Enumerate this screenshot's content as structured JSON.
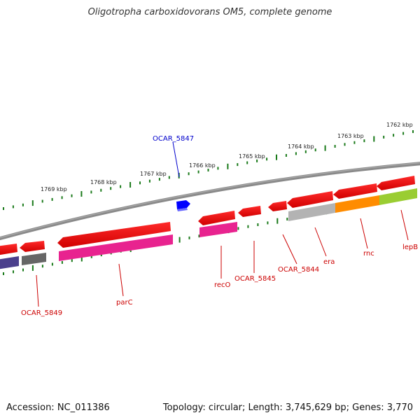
{
  "title": "Oligotropha carboxidovorans OM5, complete genome",
  "footer": {
    "accession": "Accession: NC_011386",
    "summary": "Topology: circular; Length: 3,745,629 bp; Genes: 3,770"
  },
  "kbp_ticks": [
    {
      "label": "1769 kbp",
      "kbp": 1769
    },
    {
      "label": "1768 kbp",
      "kbp": 1768
    },
    {
      "label": "1767 kbp",
      "kbp": 1767
    },
    {
      "label": "1766 kbp",
      "kbp": 1766
    },
    {
      "label": "1765 kbp",
      "kbp": 1765
    },
    {
      "label": "1764 kbp",
      "kbp": 1764
    },
    {
      "label": "1763 kbp",
      "kbp": 1763
    },
    {
      "label": "1762 kbp",
      "kbp": 1762
    }
  ],
  "gene_labels": [
    {
      "name": "OCAR_5847",
      "color": "#0000cc"
    },
    {
      "name": "OCAR_5849",
      "color": "#cc0000"
    },
    {
      "name": "parC",
      "color": "#cc0000"
    },
    {
      "name": "recO",
      "color": "#cc0000"
    },
    {
      "name": "OCAR_5845",
      "color": "#cc0000"
    },
    {
      "name": "OCAR_5844",
      "color": "#cc0000"
    },
    {
      "name": "era",
      "color": "#cc0000"
    },
    {
      "name": "rnc",
      "color": "#cc0000"
    },
    {
      "name": "lepB",
      "color": "#cc0000"
    }
  ],
  "colors": {
    "gene": "#ff0000",
    "backbone": "#808080",
    "tick": "#1a7a1a",
    "cog_magenta": "#e8238f",
    "cog_purple": "#4b3f8c",
    "cog_gray": "#666666",
    "cog_lightgray": "#b3b3b3",
    "cog_orange": "#ff8c00",
    "cog_green": "#9acd32",
    "rna": "#0000ff"
  }
}
